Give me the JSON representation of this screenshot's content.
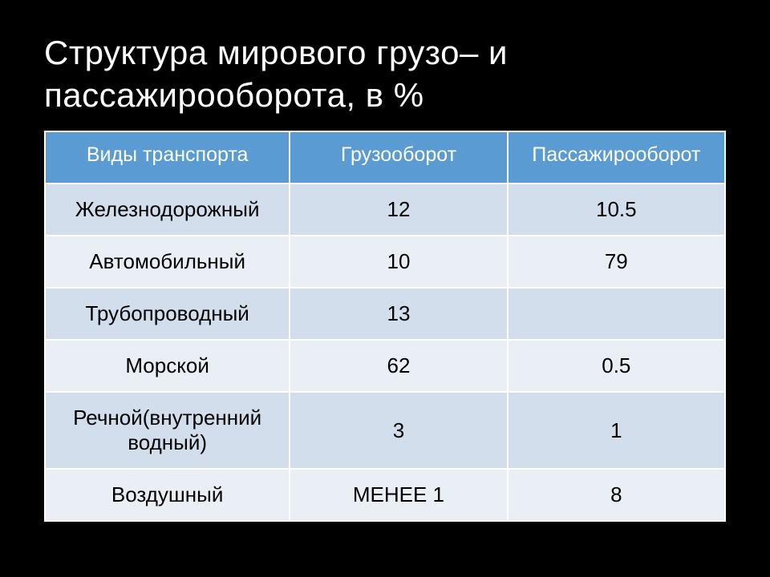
{
  "title": "Структура мирового грузо– и пассажирооборота, в %",
  "table": {
    "type": "table",
    "header_bg": "#5a9bd4",
    "header_color": "#ffffff",
    "row_alt_bg_light": "#d2deeb",
    "row_alt_bg_lighter": "#eaeff6",
    "cell_text_color": "#000000",
    "border_color": "#ffffff",
    "header_fontsize": 25,
    "cell_fontsize": 26,
    "columns": [
      {
        "label": "Виды транспорта",
        "width_pct": 36
      },
      {
        "label": "Грузооборот",
        "width_pct": 32
      },
      {
        "label": "Пассажирооборот",
        "width_pct": 32
      }
    ],
    "rows": [
      {
        "cells": [
          "Железнодорожный",
          "12",
          "10.5"
        ],
        "bg": "#d2deeb"
      },
      {
        "cells": [
          "Автомобильный",
          "10",
          "79"
        ],
        "bg": "#eaeff6"
      },
      {
        "cells": [
          "Трубопроводный",
          "13",
          ""
        ],
        "bg": "#d2deeb"
      },
      {
        "cells": [
          "Морской",
          "62",
          "0.5"
        ],
        "bg": "#eaeff6"
      },
      {
        "cells": [
          "Речной(внутренний водный)",
          "3",
          "1"
        ],
        "bg": "#d2deeb"
      },
      {
        "cells": [
          "Воздушный",
          "МЕНЕЕ 1",
          "8"
        ],
        "bg": "#eaeff6"
      }
    ]
  }
}
